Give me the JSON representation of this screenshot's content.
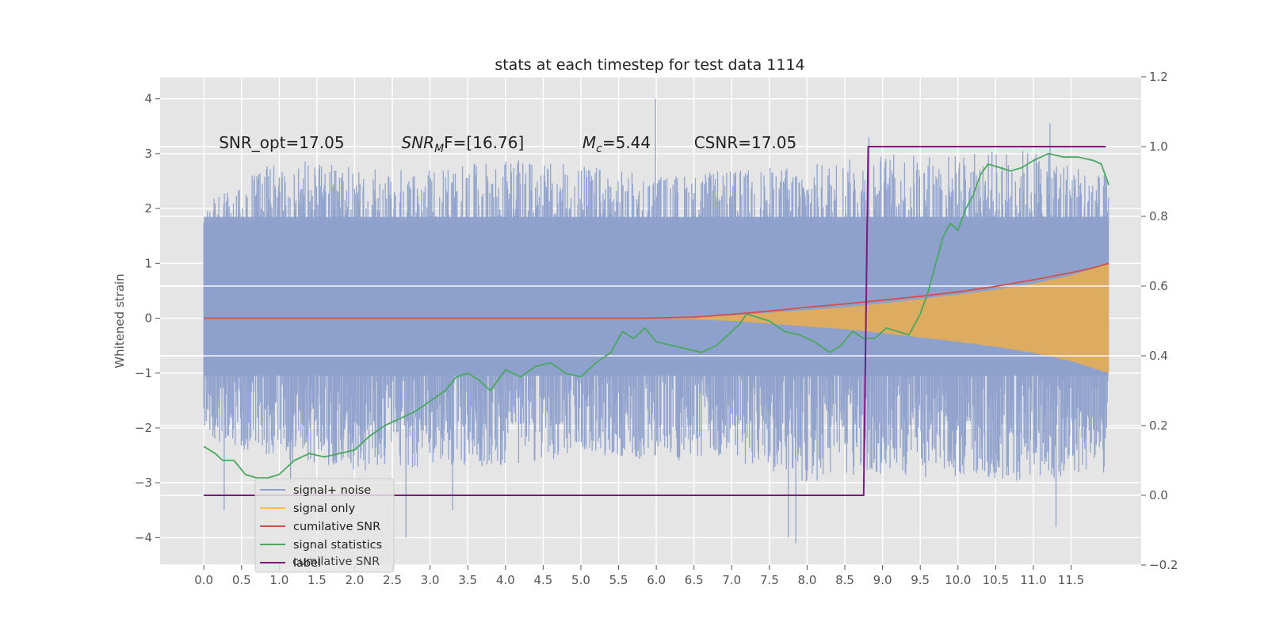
{
  "chart_data": {
    "type": "line",
    "title": "stats at each timestep for test data 1114",
    "ylabel": "Whitened strain",
    "xlim": [
      -0.58,
      12.43
    ],
    "ylim": [
      -4.5,
      4.4
    ],
    "y2lim": [
      -0.2,
      1.2
    ],
    "grid": true,
    "legend_position": "lower-left",
    "x_ticks": [
      "0.0",
      "0.5",
      "1.0",
      "1.5",
      "2.0",
      "2.5",
      "3.0",
      "3.5",
      "4.0",
      "4.5",
      "5.0",
      "5.5",
      "6.0",
      "6.5",
      "7.0",
      "7.5",
      "8.0",
      "8.5",
      "9.0",
      "9.5",
      "10.0",
      "10.5",
      "11.0",
      "11.5"
    ],
    "y_ticks": [
      "4",
      "3",
      "2",
      "1",
      "0",
      "−1",
      "−2",
      "−3",
      "−4"
    ],
    "y2_ticks": [
      "1.2",
      "1.0",
      "0.8",
      "0.6",
      "0.4",
      "0.2",
      "0.0",
      "−0.2"
    ],
    "annotations": [
      {
        "text": "SNR_opt=17.05",
        "x": 0.2,
        "y": 3.2
      },
      {
        "base": "SNR",
        "sub": "M",
        "rest": "F=[16.76]",
        "x": 2.62,
        "y": 3.2
      },
      {
        "base": "M",
        "sub": "c",
        "rest": "=5.44",
        "x": 5.02,
        "y": 3.2
      },
      {
        "text": "CSNR=17.05",
        "x": 6.5,
        "y": 3.2
      }
    ],
    "legend_entries": [
      {
        "label": "signal+ noise",
        "color": "#8da0cb"
      },
      {
        "label": "signal only",
        "color": "#fdbf3f"
      },
      {
        "label": "cumilative SNR",
        "color": "#d0504a"
      },
      {
        "label": "signal statistics",
        "color": "#4aa85e"
      },
      {
        "label": "label",
        "color": "#7b1a7f"
      }
    ],
    "legend_ghost_text": "cumilative SNR",
    "series": [
      {
        "name": "signal+ noise",
        "axis": "left",
        "color": "#8da0cb",
        "noise_envelope_x": [
          0.0,
          1.0,
          2.0,
          3.0,
          4.0,
          5.0,
          6.0,
          7.0,
          8.0,
          9.0,
          10.0,
          11.0,
          12.0
        ],
        "noise_upper": [
          2.1,
          2.9,
          2.8,
          2.7,
          2.9,
          2.8,
          2.6,
          2.7,
          2.8,
          3.0,
          3.0,
          3.1,
          2.6
        ],
        "noise_lower": [
          -2.2,
          -2.6,
          -2.8,
          -2.7,
          -2.7,
          -2.5,
          -2.6,
          -2.6,
          -3.0,
          -2.9,
          -2.9,
          -3.0,
          -2.8
        ],
        "peaks": [
          [
            0.27,
            -3.5
          ],
          [
            1.15,
            -3.0
          ],
          [
            2.68,
            -4.0
          ],
          [
            3.3,
            -3.5
          ],
          [
            5.99,
            4.0
          ],
          [
            7.85,
            -4.1
          ],
          [
            7.75,
            -4.0
          ],
          [
            8.82,
            3.3
          ],
          [
            11.3,
            -3.8
          ],
          [
            11.22,
            3.55
          ]
        ]
      },
      {
        "name": "signal only",
        "axis": "left",
        "color": "#e7ad55",
        "x": [
          6.0,
          6.5,
          7.0,
          7.5,
          8.0,
          8.5,
          9.0,
          9.5,
          10.0,
          10.5,
          11.0,
          11.5,
          12.0
        ],
        "upper": [
          0.0,
          0.02,
          0.05,
          0.1,
          0.15,
          0.2,
          0.27,
          0.35,
          0.43,
          0.52,
          0.63,
          0.78,
          1.0
        ],
        "lower": [
          0.0,
          -0.02,
          -0.05,
          -0.1,
          -0.15,
          -0.2,
          -0.27,
          -0.35,
          -0.43,
          -0.52,
          -0.63,
          -0.78,
          -1.0
        ]
      },
      {
        "name": "cumilative SNR",
        "axis": "left",
        "color": "#d0504a",
        "x": [
          0.0,
          5.8,
          6.5,
          7.0,
          7.5,
          8.0,
          8.5,
          9.0,
          9.5,
          10.0,
          10.5,
          11.0,
          11.5,
          11.8,
          12.0
        ],
        "values": [
          0.0,
          0.0,
          0.02,
          0.07,
          0.13,
          0.2,
          0.26,
          0.33,
          0.4,
          0.48,
          0.58,
          0.7,
          0.83,
          0.92,
          1.0
        ]
      },
      {
        "name": "signal statistics",
        "axis": "right",
        "color": "#4aa85e",
        "x": [
          0.0,
          0.15,
          0.25,
          0.4,
          0.55,
          0.7,
          0.85,
          1.0,
          1.2,
          1.4,
          1.6,
          1.8,
          2.0,
          2.2,
          2.4,
          2.6,
          2.8,
          3.0,
          3.2,
          3.35,
          3.5,
          3.65,
          3.8,
          4.0,
          4.2,
          4.4,
          4.6,
          4.8,
          5.0,
          5.2,
          5.4,
          5.55,
          5.7,
          5.85,
          6.0,
          6.2,
          6.4,
          6.6,
          6.8,
          7.0,
          7.1,
          7.2,
          7.35,
          7.5,
          7.7,
          7.9,
          8.1,
          8.3,
          8.45,
          8.6,
          8.75,
          8.9,
          9.05,
          9.2,
          9.35,
          9.5,
          9.6,
          9.7,
          9.8,
          9.9,
          10.0,
          10.1,
          10.2,
          10.3,
          10.4,
          10.55,
          10.7,
          10.85,
          11.0,
          11.2,
          11.4,
          11.6,
          11.8,
          11.9,
          12.0
        ],
        "values": [
          0.14,
          0.12,
          0.1,
          0.1,
          0.06,
          0.05,
          0.05,
          0.06,
          0.1,
          0.12,
          0.11,
          0.12,
          0.13,
          0.17,
          0.2,
          0.22,
          0.24,
          0.27,
          0.3,
          0.34,
          0.35,
          0.33,
          0.3,
          0.36,
          0.34,
          0.37,
          0.38,
          0.35,
          0.34,
          0.38,
          0.41,
          0.47,
          0.45,
          0.48,
          0.44,
          0.43,
          0.42,
          0.41,
          0.43,
          0.47,
          0.49,
          0.52,
          0.51,
          0.5,
          0.47,
          0.46,
          0.44,
          0.41,
          0.43,
          0.47,
          0.45,
          0.45,
          0.48,
          0.47,
          0.46,
          0.52,
          0.58,
          0.66,
          0.74,
          0.78,
          0.76,
          0.82,
          0.86,
          0.92,
          0.95,
          0.94,
          0.93,
          0.94,
          0.96,
          0.98,
          0.97,
          0.97,
          0.96,
          0.95,
          0.89
        ]
      },
      {
        "name": "label",
        "axis": "right",
        "color": "#7b1a7f",
        "x": [
          0.0,
          8.75,
          8.81,
          11.96
        ],
        "values": [
          0.0,
          0.0,
          1.0,
          1.0
        ]
      }
    ]
  }
}
